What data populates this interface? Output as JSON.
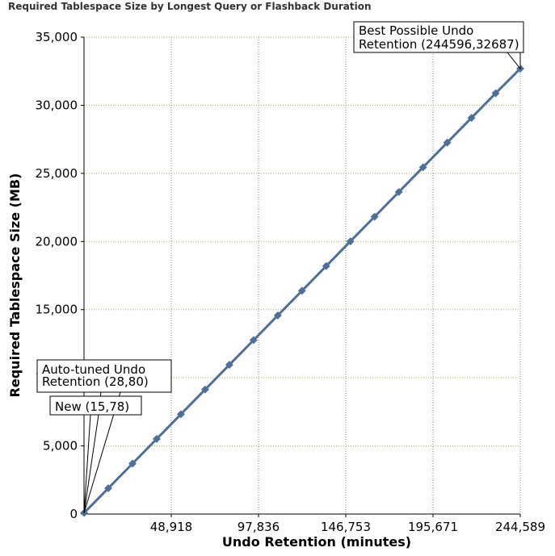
{
  "chart_data": {
    "type": "line",
    "title": "Required Tablespace Size by Longest Query or Flashback Duration",
    "xlabel": "Undo Retention (minutes)",
    "ylabel": "Required Tablespace Size (MB)",
    "xlim": [
      0,
      244596
    ],
    "ylim": [
      0,
      35000
    ],
    "x_ticks": [
      "48,918",
      "97,836",
      "146,753",
      "195,671",
      "244,589"
    ],
    "y_ticks": [
      "0",
      "5,000",
      "10,000",
      "15,000",
      "20,000",
      "25,000",
      "30,000",
      "35,000"
    ],
    "grid": true,
    "series": [
      {
        "name": "",
        "color": "#4e6f96",
        "x": [
          28,
          13603,
          27178,
          40753,
          54328,
          67903,
          81478,
          95053,
          108628,
          122203,
          135778,
          149353,
          162928,
          176503,
          190078,
          203653,
          217228,
          230803,
          244596
        ],
        "values": [
          80,
          1892,
          3704,
          5515,
          7327,
          9139,
          10951,
          12763,
          14575,
          16387,
          18198,
          20010,
          21822,
          23634,
          25446,
          27258,
          29070,
          30881,
          32687
        ]
      }
    ],
    "annotations": [
      {
        "label": "Best Possible Undo Retention (244596,32687)",
        "lines": [
          "Best Possible Undo",
          "Retention (244596,32687)"
        ],
        "x": 244596,
        "y": 32687
      },
      {
        "label": "Auto-tuned Undo Retention (28,80)",
        "lines": [
          "Auto-tuned Undo",
          "Retention (28,80)"
        ],
        "x": 28,
        "y": 80
      },
      {
        "label": "New (15,78)",
        "lines": [
          "New (15,78)"
        ],
        "x": 15,
        "y": 78
      }
    ]
  }
}
